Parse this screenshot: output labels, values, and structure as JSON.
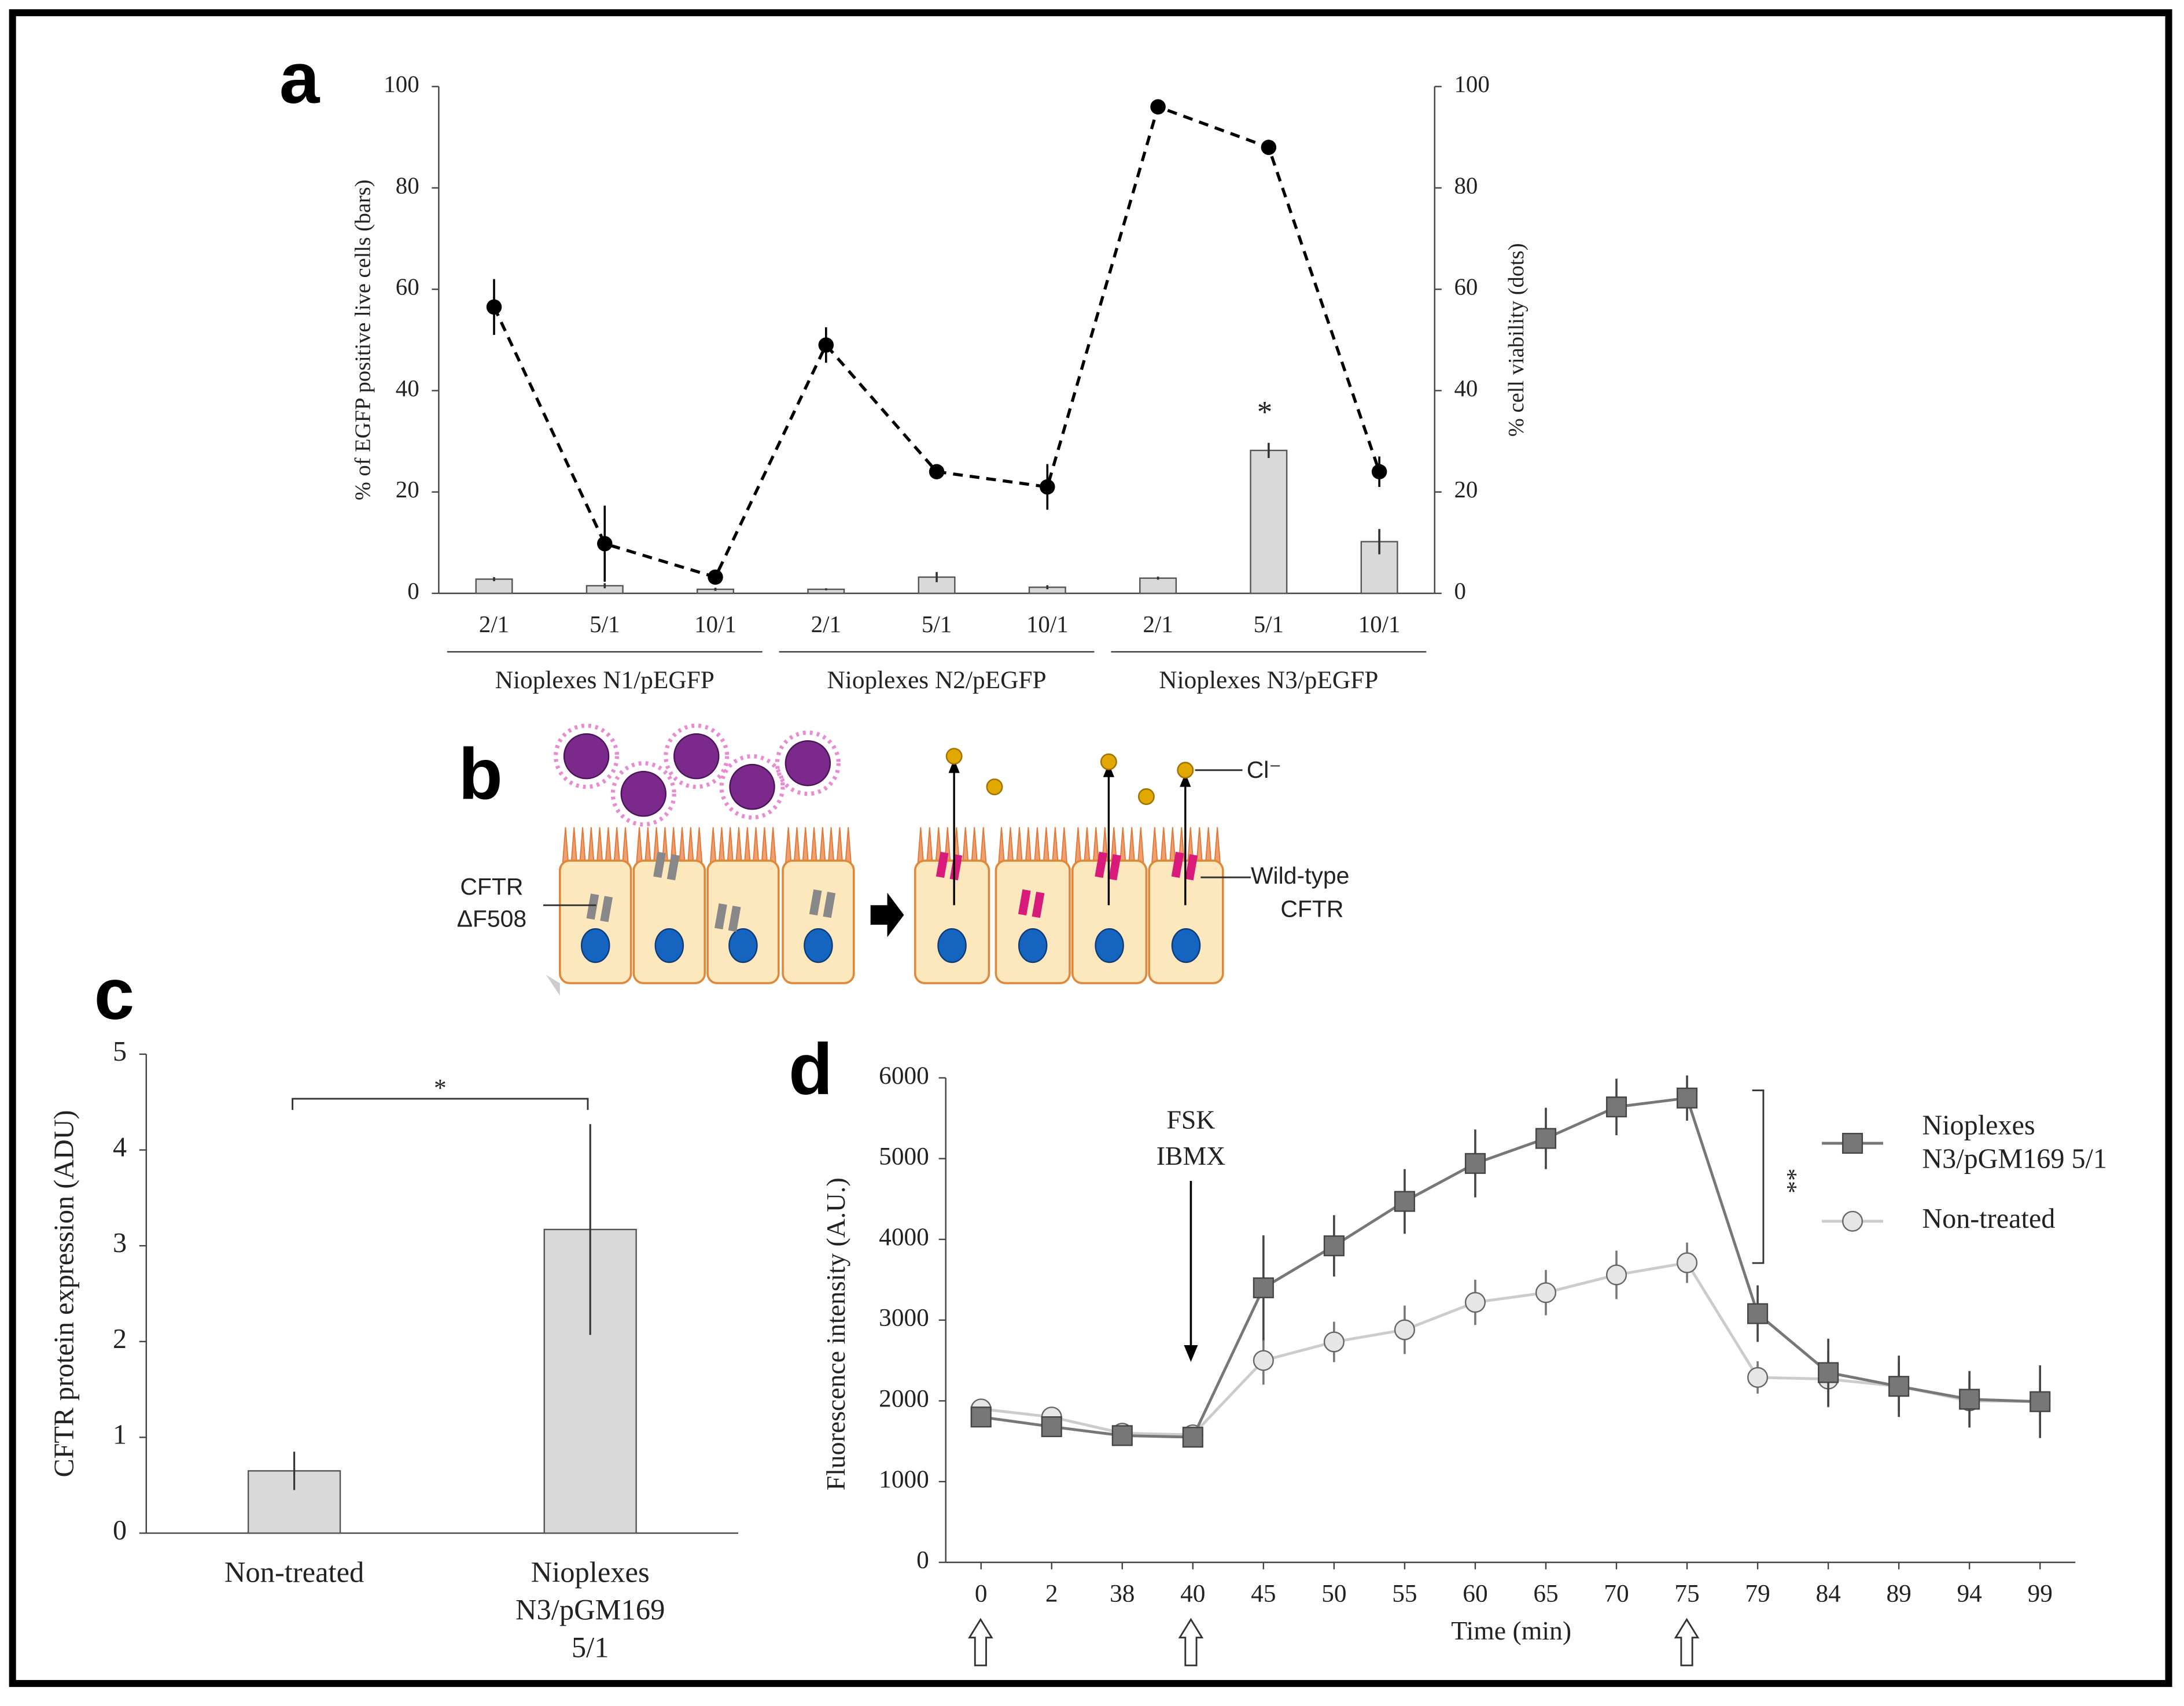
{
  "chart_data": [
    {
      "type": "combo",
      "panel": "a",
      "categories": [
        "2/1",
        "5/1",
        "10/1",
        "2/1",
        "5/1",
        "10/1",
        "2/1",
        "5/1",
        "10/1"
      ],
      "groups": [
        "Nioplexes N1/pEGFP",
        "Nioplexes N2/pEGFP",
        "Nioplexes N3/pEGFP"
      ],
      "y_label": "% of EGFP positive live cells (bars)",
      "y2_label": "% cell viability (dots)",
      "ylim": [
        0,
        100
      ],
      "yticks": [
        0,
        20,
        40,
        60,
        80,
        100
      ],
      "y2lim": [
        0,
        100
      ],
      "y2ticks": [
        0,
        20,
        40,
        60,
        80,
        100
      ],
      "annotation": "*",
      "series": [
        {
          "kind": "bar",
          "color": "#d9d9d9",
          "values": [
            2.8,
            1.5,
            0.8,
            0.8,
            3.2,
            1.2,
            3.0,
            28.2,
            10.2
          ],
          "errors": [
            0.4,
            0.5,
            0.3,
            0.2,
            1.0,
            0.4,
            0.3,
            1.5,
            2.5
          ]
        },
        {
          "kind": "line",
          "axis": "y2",
          "color": "#000000",
          "dashed": true,
          "values": [
            56.5,
            9.8,
            3.2,
            49,
            24,
            21,
            96,
            88,
            24
          ],
          "errors": [
            5.5,
            7.5,
            0.5,
            3.5,
            0.5,
            4.5,
            0.5,
            1.5,
            3
          ]
        }
      ]
    },
    {
      "type": "bar",
      "panel": "c",
      "categories": [
        "Non-treated",
        "Nioplexes N3/pGM169 5/1"
      ],
      "values": [
        0.65,
        3.17
      ],
      "errors": [
        0.2,
        1.1
      ],
      "color": "#d9d9d9",
      "y_label": "CFTR protein expression (ADU)",
      "ylim": [
        0,
        5
      ],
      "yticks": [
        0,
        1,
        2,
        3,
        4,
        5
      ],
      "annotation": "*"
    },
    {
      "type": "line",
      "panel": "d",
      "categories": [
        "0",
        "2",
        "38",
        "40",
        "45",
        "50",
        "55",
        "60",
        "65",
        "70",
        "75",
        "79",
        "84",
        "89",
        "94",
        "99"
      ],
      "x_label": "Time (min)",
      "y_label": "Fluorescence intensity (A.U.)",
      "ylim": [
        0,
        6000
      ],
      "yticks": [
        0,
        1000,
        2000,
        3000,
        4000,
        5000,
        6000
      ],
      "annotations": [
        "FSK",
        "IBMX",
        "**"
      ],
      "legend": "right",
      "series": [
        {
          "name": "Nioplexes N3/pGM169 5/1",
          "color": "#777777",
          "marker": "square",
          "values": [
            1800,
            1680,
            1570,
            1550,
            3400,
            3920,
            4470,
            4940,
            5250,
            5640,
            5750,
            3080,
            2350,
            2180,
            2020,
            1990
          ],
          "errors": [
            100,
            80,
            60,
            80,
            650,
            380,
            400,
            420,
            380,
            350,
            280,
            350,
            420,
            380,
            350,
            450
          ]
        },
        {
          "name": "Non-treated",
          "color": "#cccccc",
          "marker": "circle",
          "values": [
            1900,
            1800,
            1600,
            1580,
            2500,
            2730,
            2880,
            3220,
            3340,
            3560,
            3710,
            2290,
            2270,
            2180,
            2000,
            1990
          ],
          "errors": [
            100,
            80,
            60,
            60,
            300,
            250,
            300,
            280,
            280,
            300,
            250,
            200,
            350,
            300,
            300,
            300
          ]
        }
      ]
    }
  ],
  "panel_b": {
    "panel": "b",
    "chloride": "Cl⁻",
    "mutant": [
      "CFTR",
      "ΔF508"
    ],
    "wild_type": [
      "Wild-type",
      "CFTR"
    ]
  }
}
